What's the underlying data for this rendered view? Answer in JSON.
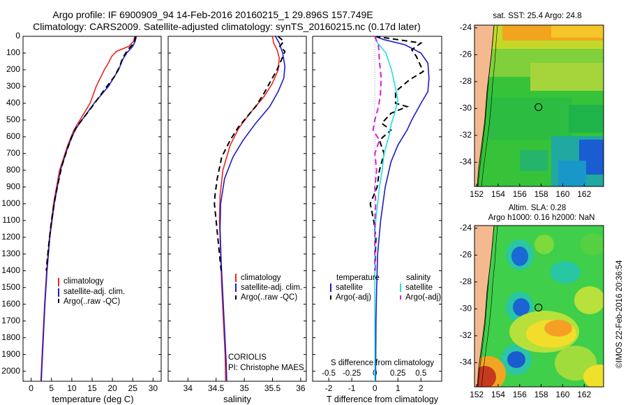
{
  "header": {
    "line1": "Argo profile: IF 6900909_94 14-Feb-2016 20160215_1 29.896S 157.749E",
    "line2": "Climatology: CARS2009. Satellite-adjusted climatology: synTS_20160215.nc (0.17d later)"
  },
  "colors": {
    "clim": "#e8251f",
    "sat": "#1c1cc8",
    "argo": "#000000",
    "sat_diff": "#22dde0",
    "argo_diff": "#d61fd6",
    "land": "#f5b98f"
  },
  "y_ticks": [
    "0",
    "100",
    "200",
    "300",
    "400",
    "500",
    "600",
    "700",
    "800",
    "900",
    "1000",
    "1100",
    "1200",
    "1300",
    "1400",
    "1500",
    "1600",
    "1700",
    "1800",
    "1900",
    "2000"
  ],
  "chart_data": [
    {
      "type": "line",
      "xlabel": "temperature (deg C)",
      "x_ticks": [
        "0",
        "5",
        "10",
        "15",
        "20",
        "25",
        "30"
      ],
      "xlim": [
        -2,
        32
      ],
      "ylim": [
        0,
        2060
      ],
      "legend": [
        "climatology",
        "satellite-adj. clim.",
        "Argo(..raw -QC)"
      ],
      "series": [
        {
          "name": "climatology",
          "style": "solid",
          "color": "#e8251f",
          "points": [
            [
              25.5,
              0
            ],
            [
              25.2,
              30
            ],
            [
              24,
              60
            ],
            [
              21,
              90
            ],
            [
              19.8,
              120
            ],
            [
              19,
              160
            ],
            [
              18,
              200
            ],
            [
              16,
              300
            ],
            [
              14.5,
              400
            ],
            [
              12,
              500
            ],
            [
              10.5,
              560
            ],
            [
              9,
              650
            ],
            [
              7,
              800
            ],
            [
              5.5,
              1000
            ],
            [
              4.5,
              1200
            ],
            [
              3.8,
              1400
            ],
            [
              3.3,
              1600
            ],
            [
              2.9,
              1800
            ],
            [
              2.5,
              2000
            ],
            [
              2.4,
              2060
            ]
          ]
        },
        {
          "name": "satellite-adj. clim.",
          "style": "solid",
          "color": "#1c1cc8",
          "points": [
            [
              25.9,
              0
            ],
            [
              25.6,
              30
            ],
            [
              25,
              60
            ],
            [
              23.5,
              100
            ],
            [
              22.5,
              140
            ],
            [
              21.5,
              200
            ],
            [
              19,
              300
            ],
            [
              15.5,
              400
            ],
            [
              12.5,
              500
            ],
            [
              10.8,
              560
            ],
            [
              9.2,
              650
            ],
            [
              7.2,
              800
            ],
            [
              5.7,
              1000
            ],
            [
              4.6,
              1200
            ],
            [
              3.9,
              1400
            ],
            [
              3.4,
              1600
            ],
            [
              3,
              1800
            ],
            [
              2.6,
              2000
            ],
            [
              2.5,
              2060
            ]
          ]
        },
        {
          "name": "Argo(..raw -QC)",
          "style": "dash",
          "color": "#000000",
          "points": [
            [
              25.7,
              0
            ],
            [
              25.3,
              40
            ],
            [
              23.8,
              80
            ],
            [
              22.5,
              130
            ],
            [
              21.8,
              180
            ],
            [
              20.5,
              240
            ],
            [
              18,
              320
            ],
            [
              15,
              420
            ],
            [
              12.8,
              490
            ],
            [
              11.2,
              540
            ],
            [
              10,
              600
            ],
            [
              8.8,
              680
            ],
            [
              7.5,
              780
            ],
            [
              6,
              950
            ],
            [
              5,
              1100
            ],
            [
              4.3,
              1250
            ],
            [
              3.7,
              1400
            ]
          ]
        }
      ]
    },
    {
      "type": "line",
      "xlabel": "salinity",
      "x_ticks": [
        "34",
        "34.5",
        "35",
        "35.5",
        "36"
      ],
      "xlim": [
        33.65,
        36.1
      ],
      "ylim": [
        0,
        2060
      ],
      "legend": [
        "climatology",
        "satellite-adj. clim.",
        "Argo(..raw -QC)"
      ],
      "series": [
        {
          "name": "climatology",
          "style": "solid",
          "color": "#e8251f",
          "points": [
            [
              35.5,
              0
            ],
            [
              35.52,
              40
            ],
            [
              35.58,
              80
            ],
            [
              35.62,
              130
            ],
            [
              35.6,
              200
            ],
            [
              35.5,
              280
            ],
            [
              35.35,
              360
            ],
            [
              35.1,
              460
            ],
            [
              34.9,
              550
            ],
            [
              34.75,
              650
            ],
            [
              34.62,
              800
            ],
            [
              34.57,
              950
            ],
            [
              34.56,
              1100
            ],
            [
              34.58,
              1300
            ],
            [
              34.6,
              1500
            ],
            [
              34.63,
              1700
            ],
            [
              34.66,
              1900
            ],
            [
              34.67,
              2060
            ]
          ]
        },
        {
          "name": "satellite-adj. clim.",
          "style": "solid",
          "color": "#1c1cc8",
          "points": [
            [
              35.55,
              0
            ],
            [
              35.62,
              40
            ],
            [
              35.68,
              100
            ],
            [
              35.72,
              180
            ],
            [
              35.7,
              250
            ],
            [
              35.6,
              330
            ],
            [
              35.45,
              420
            ],
            [
              35.2,
              520
            ],
            [
              34.98,
              620
            ],
            [
              34.8,
              720
            ],
            [
              34.65,
              850
            ],
            [
              34.58,
              1000
            ],
            [
              34.57,
              1150
            ],
            [
              34.59,
              1350
            ],
            [
              34.62,
              1550
            ],
            [
              34.65,
              1750
            ],
            [
              34.68,
              1950
            ],
            [
              34.69,
              2060
            ]
          ]
        },
        {
          "name": "Argo(..raw -QC)",
          "style": "dash",
          "color": "#000000",
          "points": [
            [
              35.6,
              0
            ],
            [
              35.7,
              30
            ],
            [
              35.63,
              60
            ],
            [
              35.72,
              90
            ],
            [
              35.66,
              140
            ],
            [
              35.58,
              200
            ],
            [
              35.48,
              260
            ],
            [
              35.35,
              340
            ],
            [
              35.2,
              420
            ],
            [
              35.05,
              480
            ],
            [
              34.9,
              540
            ],
            [
              34.75,
              620
            ],
            [
              34.6,
              720
            ],
            [
              34.52,
              850
            ],
            [
              34.48,
              950
            ],
            [
              34.47,
              1000
            ],
            [
              34.5,
              1100
            ],
            [
              34.53,
              1200
            ],
            [
              34.56,
              1300
            ],
            [
              34.59,
              1400
            ]
          ]
        }
      ]
    },
    {
      "type": "line",
      "xlabel": "T difference from climatology",
      "xlabel2": "S difference from climatology",
      "x_ticks": [
        "-2",
        "-1",
        "0",
        "1",
        "2"
      ],
      "x_ticks2": [
        "-0.5",
        "-0.25",
        "0",
        "0.25",
        "0.5"
      ],
      "xlim": [
        -2.7,
        2.9
      ],
      "ylim": [
        0,
        2060
      ],
      "legend_titles": [
        "temperature",
        "salinity"
      ],
      "legend_left": [
        "satellite",
        "Argo(-adj)"
      ],
      "legend_right": [
        "satellite",
        "Argo(-adj)"
      ],
      "series": [
        {
          "name": "T satellite",
          "style": "solid",
          "color": "#1c1cc8",
          "points": [
            [
              0,
              0
            ],
            [
              0.4,
              20
            ],
            [
              1.3,
              50
            ],
            [
              2.0,
              100
            ],
            [
              2.3,
              160
            ],
            [
              2.35,
              250
            ],
            [
              2.3,
              330
            ],
            [
              2.0,
              400
            ],
            [
              1.8,
              450
            ],
            [
              1.6,
              500
            ],
            [
              1.4,
              560
            ],
            [
              1.0,
              650
            ],
            [
              0.7,
              750
            ],
            [
              0.45,
              900
            ],
            [
              0.25,
              1100
            ],
            [
              0.12,
              1300
            ],
            [
              0.08,
              1500
            ],
            [
              0.05,
              1700
            ],
            [
              0.04,
              1900
            ],
            [
              0.03,
              2060
            ]
          ]
        },
        {
          "name": "T Argo(-adj)",
          "style": "dash",
          "color": "#000000",
          "points": [
            [
              0,
              0
            ],
            [
              1.0,
              20
            ],
            [
              2.0,
              40
            ],
            [
              1.6,
              80
            ],
            [
              1.8,
              120
            ],
            [
              2.1,
              210
            ],
            [
              1.5,
              260
            ],
            [
              0.9,
              330
            ],
            [
              0.9,
              400
            ],
            [
              1.4,
              420
            ],
            [
              0.7,
              460
            ],
            [
              0.3,
              520
            ],
            [
              0.7,
              560
            ],
            [
              0.2,
              620
            ],
            [
              0.4,
              700
            ],
            [
              0.2,
              800
            ],
            [
              0.1,
              900
            ],
            [
              -0.2,
              1000
            ],
            [
              -0.05,
              1100
            ],
            [
              0.05,
              1200
            ],
            [
              0.02,
              1300
            ],
            [
              0.01,
              1400
            ]
          ]
        },
        {
          "name": "S satellite",
          "style": "solid",
          "color": "#22dde0",
          "points": [
            [
              0,
              0
            ],
            [
              0.03,
              40
            ],
            [
              0.12,
              100
            ],
            [
              0.18,
              200
            ],
            [
              0.22,
              300
            ],
            [
              0.25,
              380
            ],
            [
              0.22,
              450
            ],
            [
              0.18,
              520
            ],
            [
              0.15,
              600
            ],
            [
              0.1,
              700
            ],
            [
              0.08,
              800
            ],
            [
              0.05,
              900
            ],
            [
              0.03,
              1000
            ],
            [
              0.01,
              1100
            ],
            [
              0.0,
              1200
            ],
            [
              0.0,
              1400
            ],
            [
              0.0,
              1600
            ],
            [
              0.0,
              1800
            ],
            [
              0.0,
              2000
            ],
            [
              0.0,
              2060
            ]
          ]
        },
        {
          "name": "S Argo(-adj)",
          "style": "dash",
          "color": "#d61fd6",
          "points": [
            [
              0,
              0
            ],
            [
              0.04,
              60
            ],
            [
              0.05,
              150
            ],
            [
              0.07,
              250
            ],
            [
              0.06,
              350
            ],
            [
              0.04,
              420
            ],
            [
              0.0,
              500
            ],
            [
              -0.02,
              560
            ],
            [
              0.05,
              620
            ],
            [
              0.0,
              700
            ],
            [
              0.02,
              800
            ],
            [
              0.0,
              900
            ],
            [
              0.01,
              1000
            ],
            [
              0.0,
              1100
            ],
            [
              0.0,
              1200
            ],
            [
              0.0,
              1400
            ]
          ]
        }
      ]
    },
    {
      "type": "heatmap",
      "title": "sat. SST: 25.4  Argo: 24.8",
      "x_ticks": [
        "152",
        "154",
        "156",
        "158",
        "160",
        "162"
      ],
      "y_ticks": [
        "-24",
        "-26",
        "-28",
        "-30",
        "-32",
        "-34"
      ],
      "xlim": [
        151.8,
        163.8
      ],
      "ylim": [
        -35.8,
        -23.8
      ],
      "marker": [
        157.75,
        -29.9
      ]
    },
    {
      "type": "heatmap",
      "title": "Altim. SLA: 0.28",
      "subtitle": "Argo h1000: 0.16 h2000: NaN",
      "x_ticks": [
        "152",
        "154",
        "156",
        "158",
        "160",
        "162"
      ],
      "y_ticks": [
        "-24",
        "-26",
        "-28",
        "-30",
        "-32",
        "-34"
      ],
      "xlim": [
        151.8,
        163.8
      ],
      "ylim": [
        -35.8,
        -23.8
      ],
      "marker": [
        157.75,
        -29.9
      ]
    }
  ],
  "labels": {
    "agency": "CORIOLIS",
    "pi": "PI: Christophe MAES",
    "stamp": "©IMOS 22-Feb-2016 20:36:54"
  }
}
